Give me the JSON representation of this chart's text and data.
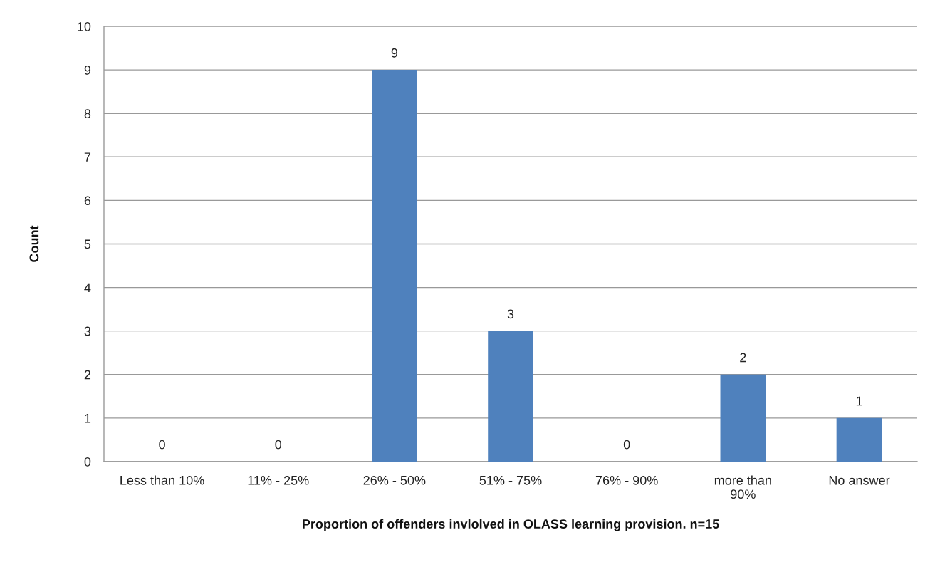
{
  "chart_data": {
    "type": "bar",
    "xlabel": "Proportion of offenders invlolved in OLASS learning provision. n=15",
    "ylabel": "Count",
    "categories": [
      "Less than 10%",
      "11% - 25%",
      "26% - 50%",
      "51% - 75%",
      "76% - 90%",
      "more than\n90%",
      "No answer"
    ],
    "values": [
      0,
      0,
      9,
      3,
      0,
      2,
      1
    ],
    "color": "#4f81bd",
    "ylim": [
      0,
      10
    ],
    "yticks": [
      0,
      1,
      2,
      3,
      4,
      5,
      6,
      7,
      8,
      9,
      10
    ],
    "grid": "y",
    "data_labels": true,
    "legend": false
  }
}
